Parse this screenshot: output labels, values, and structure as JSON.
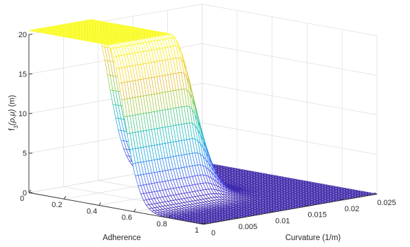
{
  "chart_data": {
    "type": "surface",
    "title": "",
    "zlabel": "f_3(ρ,μ) (m)",
    "zlabel_parts": {
      "base": "f",
      "sub": "3",
      "args": "(ρ,μ)",
      "unit": " (m)"
    },
    "xlabel": "Curvature (1/m)",
    "ylabel": "Adherence",
    "xlim": [
      0,
      0.025
    ],
    "ylim": [
      0,
      1
    ],
    "zlim": [
      0,
      20
    ],
    "x_ticks": [
      "0",
      "0.005",
      "0.01",
      "0.015",
      "0.02",
      "0.025"
    ],
    "y_ticks": [
      "0",
      "0.2",
      "0.4",
      "0.6",
      "0.8",
      "1"
    ],
    "z_ticks": [
      "0",
      "5",
      "10",
      "15",
      "20"
    ],
    "grid": true,
    "colormap": "parula",
    "surface": {
      "peak_value": 20.5,
      "floor_value": 0,
      "plateau_region": {
        "curvature": [
          0,
          0.009
        ],
        "adherence": [
          0,
          0.45
        ]
      },
      "transition_width": {
        "curvature": 0.0035,
        "adherence": 0.13
      }
    }
  },
  "colors": {
    "colormap_stops": [
      "#3e26a8",
      "#4744e8",
      "#2e80f2",
      "#12b3d4",
      "#2bc49c",
      "#9dca3f",
      "#e6ba31",
      "#f9e11e",
      "#f9fb15"
    ],
    "grid": "#dcdcdc",
    "axis": "#262626"
  }
}
